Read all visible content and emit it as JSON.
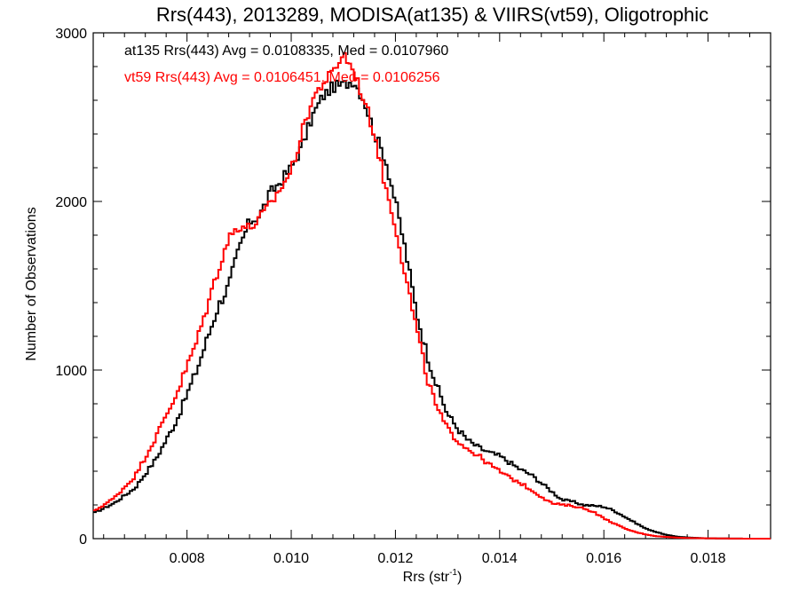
{
  "chart_data": {
    "type": "line",
    "title": "Rrs(443), 2013289, MODISA(at135) & VIIRS(vt59), Oligotrophic",
    "xlabel_main": "Rrs (str",
    "xlabel_sup": "-1",
    "xlabel_close": ")",
    "ylabel": "Number of Observations",
    "xlim": [
      0.0062,
      0.0192
    ],
    "ylim": [
      0,
      3000
    ],
    "x_ticks": [
      0.008,
      0.01,
      0.012,
      0.014,
      0.016,
      0.018
    ],
    "x_tick_labels": [
      "0.008",
      "0.010",
      "0.012",
      "0.014",
      "0.016",
      "0.018"
    ],
    "y_ticks": [
      0,
      1000,
      2000,
      3000
    ],
    "y_tick_labels": [
      "0",
      "1000",
      "2000",
      "3000"
    ],
    "legend_placement": "top-left",
    "line_style": "step",
    "series": [
      {
        "name": "at135",
        "label": "at135 Rrs(443) Avg = 0.0108335, Med = 0.0107960",
        "color": "#000000",
        "points": [
          [
            0.0062,
            150
          ],
          [
            0.0066,
            210
          ],
          [
            0.007,
            300
          ],
          [
            0.0074,
            470
          ],
          [
            0.0078,
            700
          ],
          [
            0.0082,
            1010
          ],
          [
            0.0086,
            1380
          ],
          [
            0.0088,
            1500
          ],
          [
            0.009,
            1720
          ],
          [
            0.0092,
            1880
          ],
          [
            0.0094,
            1920
          ],
          [
            0.0096,
            2050
          ],
          [
            0.0098,
            2120
          ],
          [
            0.01,
            2200
          ],
          [
            0.0102,
            2320
          ],
          [
            0.0104,
            2500
          ],
          [
            0.0106,
            2620
          ],
          [
            0.0108,
            2680
          ],
          [
            0.011,
            2690
          ],
          [
            0.0112,
            2720
          ],
          [
            0.0114,
            2600
          ],
          [
            0.0116,
            2400
          ],
          [
            0.0118,
            2260
          ],
          [
            0.012,
            2000
          ],
          [
            0.0122,
            1700
          ],
          [
            0.0124,
            1350
          ],
          [
            0.0126,
            1100
          ],
          [
            0.0128,
            900
          ],
          [
            0.013,
            740
          ],
          [
            0.0132,
            650
          ],
          [
            0.0134,
            580
          ],
          [
            0.0136,
            540
          ],
          [
            0.0138,
            510
          ],
          [
            0.014,
            490
          ],
          [
            0.0142,
            450
          ],
          [
            0.0144,
            410
          ],
          [
            0.0146,
            380
          ],
          [
            0.0148,
            330
          ],
          [
            0.015,
            280
          ],
          [
            0.0152,
            230
          ],
          [
            0.0154,
            220
          ],
          [
            0.0156,
            200
          ],
          [
            0.0158,
            195
          ],
          [
            0.016,
            190
          ],
          [
            0.0162,
            165
          ],
          [
            0.0164,
            130
          ],
          [
            0.0166,
            95
          ],
          [
            0.0168,
            60
          ],
          [
            0.017,
            40
          ],
          [
            0.0172,
            22
          ],
          [
            0.0174,
            12
          ],
          [
            0.0176,
            7
          ],
          [
            0.0178,
            4
          ],
          [
            0.018,
            2
          ],
          [
            0.0184,
            1
          ],
          [
            0.0188,
            0
          ],
          [
            0.0192,
            0
          ]
        ]
      },
      {
        "name": "vt59",
        "label": "vt59 Rrs(443) Avg = 0.0106451, Med = 0.0106256",
        "color": "#ff0000",
        "points": [
          [
            0.0062,
            160
          ],
          [
            0.0066,
            240
          ],
          [
            0.007,
            370
          ],
          [
            0.0074,
            600
          ],
          [
            0.0078,
            860
          ],
          [
            0.0082,
            1180
          ],
          [
            0.0086,
            1600
          ],
          [
            0.0088,
            1780
          ],
          [
            0.009,
            1860
          ],
          [
            0.0092,
            1840
          ],
          [
            0.0094,
            1900
          ],
          [
            0.0096,
            1980
          ],
          [
            0.0098,
            2080
          ],
          [
            0.01,
            2180
          ],
          [
            0.0102,
            2400
          ],
          [
            0.0104,
            2600
          ],
          [
            0.0106,
            2700
          ],
          [
            0.0108,
            2760
          ],
          [
            0.011,
            2880
          ],
          [
            0.0112,
            2770
          ],
          [
            0.0114,
            2600
          ],
          [
            0.0116,
            2400
          ],
          [
            0.0118,
            2100
          ],
          [
            0.012,
            1860
          ],
          [
            0.0122,
            1550
          ],
          [
            0.0124,
            1250
          ],
          [
            0.0126,
            960
          ],
          [
            0.0128,
            770
          ],
          [
            0.013,
            650
          ],
          [
            0.0132,
            580
          ],
          [
            0.0134,
            530
          ],
          [
            0.0136,
            490
          ],
          [
            0.0138,
            440
          ],
          [
            0.014,
            400
          ],
          [
            0.0142,
            360
          ],
          [
            0.0144,
            330
          ],
          [
            0.0146,
            290
          ],
          [
            0.0148,
            250
          ],
          [
            0.015,
            210
          ],
          [
            0.0152,
            200
          ],
          [
            0.0154,
            195
          ],
          [
            0.0156,
            180
          ],
          [
            0.0158,
            160
          ],
          [
            0.016,
            120
          ],
          [
            0.0162,
            90
          ],
          [
            0.0164,
            60
          ],
          [
            0.0166,
            40
          ],
          [
            0.0168,
            25
          ],
          [
            0.017,
            15
          ],
          [
            0.0172,
            10
          ],
          [
            0.0174,
            6
          ],
          [
            0.0176,
            4
          ],
          [
            0.0178,
            3
          ],
          [
            0.018,
            2
          ],
          [
            0.0184,
            1
          ],
          [
            0.0188,
            0
          ],
          [
            0.0192,
            0
          ]
        ]
      }
    ]
  }
}
